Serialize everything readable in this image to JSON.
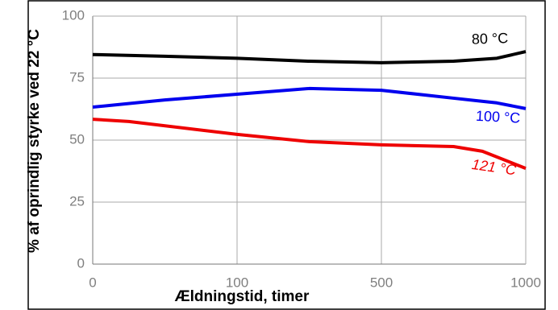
{
  "chart_data": {
    "type": "line",
    "x_label": "Ældningstid, timer",
    "y_label": "% af oprindlig styrke ved 22 °C",
    "xlim": [
      0,
      1000
    ],
    "xticks": [
      0,
      100,
      500,
      1000
    ],
    "ylim": [
      0,
      100
    ],
    "yticks": [
      0,
      25,
      50,
      75,
      100
    ],
    "grid": true,
    "series": [
      {
        "name": "80 °C",
        "color": "#000000",
        "x": [
          0,
          50,
          100,
          300,
          500,
          750,
          900,
          1000
        ],
        "values": [
          84.5,
          83.8,
          83,
          81.8,
          81.2,
          81.8,
          83,
          85.7
        ]
      },
      {
        "name": "100 °C",
        "color": "#0000ee",
        "x": [
          0,
          50,
          100,
          300,
          500,
          750,
          900,
          1000
        ],
        "values": [
          63.3,
          66.2,
          68.5,
          70.8,
          70.1,
          66.9,
          65,
          62.7
        ]
      },
      {
        "name": "121 °C",
        "color": "#ee0000",
        "x": [
          0,
          25,
          100,
          300,
          500,
          750,
          850,
          1000
        ],
        "values": [
          58.4,
          57.5,
          52.3,
          49.4,
          48.1,
          47.4,
          45.5,
          38.6
        ]
      }
    ]
  }
}
